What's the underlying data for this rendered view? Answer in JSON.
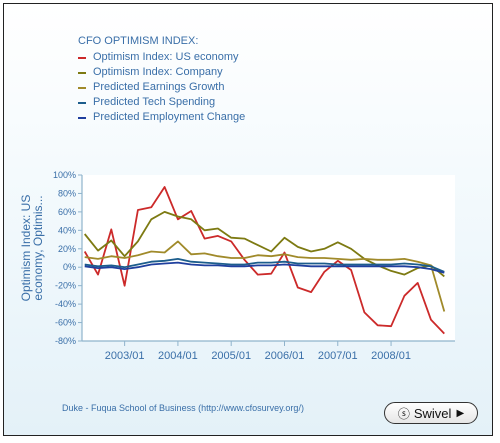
{
  "footer": {
    "source": "Duke - Fuqua School of Business (http://www.cfosurvey.org/)"
  },
  "swivel_button": {
    "label": "Swivel"
  },
  "chart_data": {
    "type": "line",
    "title": "CFO OPTIMISM INDEX:",
    "ylabel": "Optimism Index: US economy, Optimis...",
    "ylim": [
      -80,
      100
    ],
    "y_ticks": [
      "100%",
      "80%",
      "60%",
      "40%",
      "20%",
      "0%",
      "-20%",
      "-40%",
      "-60%",
      "-80%"
    ],
    "x_ticks": [
      "2003/01",
      "2004/01",
      "2005/01",
      "2006/01",
      "2007/01",
      "2008/01"
    ],
    "x_range": [
      2002.2,
      2009.2
    ],
    "legend_placement": "top-left",
    "grid": false,
    "x": [
      2002.25,
      2002.5,
      2002.75,
      2003.0,
      2003.25,
      2003.5,
      2003.75,
      2004.0,
      2004.25,
      2004.5,
      2004.75,
      2005.0,
      2005.25,
      2005.5,
      2005.75,
      2006.0,
      2006.25,
      2006.5,
      2006.75,
      2007.0,
      2007.25,
      2007.5,
      2007.75,
      2008.0,
      2008.25,
      2008.5,
      2008.75,
      2009.0
    ],
    "series": [
      {
        "name": "Optimism Index: US economy",
        "color": "#cc2a2a",
        "values": [
          17,
          -8,
          41,
          -20,
          62,
          65,
          87,
          52,
          61,
          31,
          34,
          28,
          8,
          -8,
          -7,
          16,
          -22,
          -27,
          -5,
          7,
          -3,
          -49,
          -63,
          -64,
          -31,
          -17,
          -57,
          -72
        ]
      },
      {
        "name": "Optimism Index: Company",
        "color": "#7d7a12",
        "values": [
          36,
          18,
          29,
          12,
          28,
          52,
          60,
          55,
          52,
          40,
          42,
          32,
          31,
          24,
          17,
          32,
          22,
          17,
          20,
          27,
          20,
          9,
          2,
          -4,
          -8,
          -1,
          2,
          -10
        ]
      },
      {
        "name": "Predicted Earnings Growth",
        "color": "#a08a2a",
        "values": [
          11,
          9,
          12,
          10,
          13,
          17,
          16,
          28,
          14,
          15,
          12,
          10,
          10,
          13,
          12,
          14,
          11,
          10,
          10,
          9,
          8,
          9,
          8,
          8,
          9,
          6,
          2,
          -48
        ]
      },
      {
        "name": "Predicted Tech Spending",
        "color": "#1c5d8c",
        "values": [
          3,
          1,
          2,
          0,
          3,
          6,
          7,
          9,
          6,
          5,
          4,
          3,
          3,
          5,
          5,
          6,
          4,
          4,
          4,
          3,
          3,
          3,
          3,
          3,
          4,
          3,
          1,
          -5
        ]
      },
      {
        "name": "Predicted Employment Change",
        "color": "#1f3f9e",
        "values": [
          1,
          -1,
          0,
          -2,
          0,
          3,
          4,
          5,
          3,
          2,
          2,
          1,
          1,
          2,
          2,
          3,
          2,
          1,
          1,
          1,
          1,
          1,
          1,
          1,
          1,
          0,
          -2,
          -6
        ]
      }
    ]
  }
}
